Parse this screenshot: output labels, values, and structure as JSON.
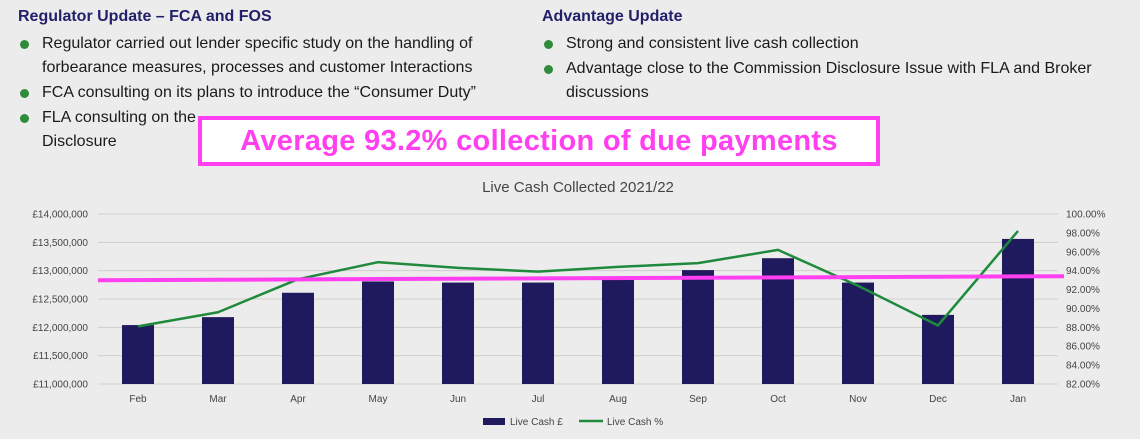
{
  "left": {
    "heading": "Regulator Update – FCA and FOS",
    "bullets": [
      "Regulator carried out lender specific study on the handling of forbearance measures, processes and customer Interactions",
      "FCA consulting on its plans to introduce the “Consumer Duty”",
      "FLA consulting on the",
      "Disclosure"
    ]
  },
  "right": {
    "heading": "Advantage Update",
    "bullets": [
      "Strong and consistent live cash collection",
      "Advantage close to the Commission Disclosure Issue with FLA and Broker discussions"
    ]
  },
  "callout": {
    "text": "Average 93.2% collection of due payments"
  },
  "colors": {
    "bar": "#1f1a5e",
    "line": "#1f8a3c",
    "highlight": "#ff3ff0",
    "bullet": "#2e8b3a",
    "heading": "#23206a"
  },
  "chart_data": {
    "type": "bar",
    "title": "Live Cash Collected 2021/22",
    "categories": [
      "Feb",
      "Mar",
      "Apr",
      "May",
      "Jun",
      "Jul",
      "Aug",
      "Sep",
      "Oct",
      "Nov",
      "Dec",
      "Jan"
    ],
    "series": [
      {
        "name": "Live Cash £",
        "type": "bar",
        "axis": "left",
        "values": [
          12040000,
          12180000,
          12610000,
          12810000,
          12790000,
          12790000,
          12890000,
          13010000,
          13220000,
          12790000,
          12220000,
          13560000
        ]
      },
      {
        "name": "Live Cash %",
        "type": "line",
        "axis": "right",
        "values": [
          88.1,
          89.6,
          93.1,
          94.9,
          94.3,
          93.9,
          94.4,
          94.8,
          96.2,
          92.4,
          88.2,
          98.2
        ]
      }
    ],
    "y_left": {
      "min": 11000000,
      "max": 14000000,
      "ticks": [
        "£11,000,000",
        "£11,500,000",
        "£12,000,000",
        "£12,500,000",
        "£13,000,000",
        "£13,500,000",
        "£14,000,000"
      ]
    },
    "y_right": {
      "min": 82,
      "max": 100,
      "ticks": [
        "82.00%",
        "84.00%",
        "86.00%",
        "88.00%",
        "90.00%",
        "92.00%",
        "94.00%",
        "96.00%",
        "98.00%",
        "100.00%"
      ]
    },
    "reference_line": {
      "value": 93.2,
      "axis": "right"
    },
    "grid": true,
    "legend": "bottom"
  }
}
